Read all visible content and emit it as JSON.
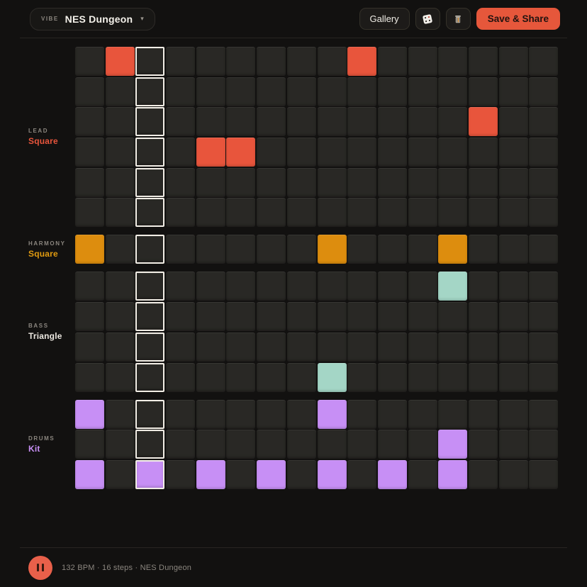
{
  "header": {
    "vibe_label": "VIBE",
    "vibe_value": "NES Dungeon",
    "caret": "▾",
    "gallery_label": "Gallery",
    "save_label": "Save & Share"
  },
  "colors": {
    "accent": "#e6573b",
    "pause_button": "#e8604a",
    "playhead_border": "#f2eee6",
    "cell": "#292825",
    "background": "#121110"
  },
  "grid": {
    "steps": 16,
    "playhead_col": 2,
    "tracks": [
      {
        "group": "LEAD",
        "voice": "Square",
        "color": "#e8553c",
        "label_color": "#e8553c",
        "rows": 6,
        "active": [
          [
            0,
            1
          ],
          [
            0,
            9
          ],
          [
            2,
            13
          ],
          [
            3,
            4
          ],
          [
            3,
            5
          ]
        ]
      },
      {
        "group": "HARMONY",
        "voice": "Square",
        "color": "#dd8d0e",
        "label_color": "#e09b10",
        "rows": 1,
        "active": [
          [
            0,
            0
          ],
          [
            0,
            8
          ],
          [
            0,
            12
          ]
        ]
      },
      {
        "group": "BASS",
        "voice": "Triangle",
        "color": "#a4d6c6",
        "label_color": "#ece8e1",
        "rows": 4,
        "active": [
          [
            0,
            12
          ],
          [
            3,
            8
          ]
        ]
      },
      {
        "group": "DRUMS",
        "voice": "Kit",
        "color": "#c78ff5",
        "label_color": "#c78ff5",
        "rows": 3,
        "active": [
          [
            0,
            0
          ],
          [
            0,
            8
          ],
          [
            1,
            12
          ],
          [
            2,
            0
          ],
          [
            2,
            2
          ],
          [
            2,
            4
          ],
          [
            2,
            6
          ],
          [
            2,
            8
          ],
          [
            2,
            10
          ],
          [
            2,
            12
          ]
        ]
      }
    ]
  },
  "footer": {
    "status": "132 BPM · 16 steps · NES Dungeon"
  }
}
